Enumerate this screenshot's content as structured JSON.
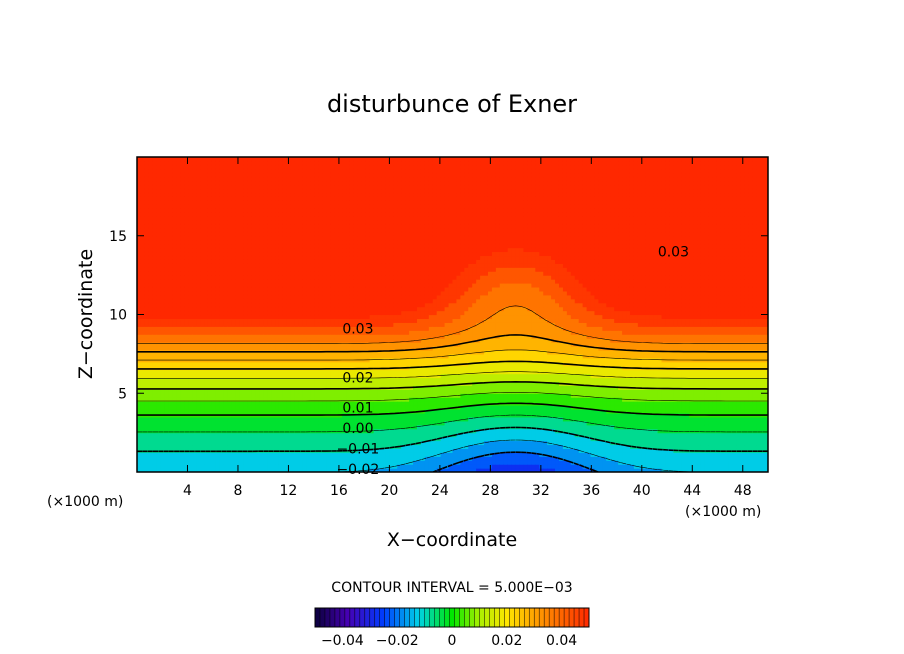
{
  "chart_data": {
    "type": "contour",
    "title": "disturbunce of Exner",
    "xlabel": "X−coordinate",
    "ylabel": "Z−coordinate",
    "x_unit_left": "(×1000 m)",
    "x_unit_right": "(×1000 m)",
    "xlim": [
      0,
      50
    ],
    "ylim": [
      0,
      20
    ],
    "x_ticks": [
      4,
      8,
      12,
      16,
      20,
      24,
      28,
      32,
      36,
      40,
      44,
      48
    ],
    "y_ticks": [
      5,
      10,
      15
    ],
    "contour_labels": [
      {
        "text": "0.03",
        "x": 17.5,
        "z": 9.1
      },
      {
        "text": "0.03",
        "x": 42.5,
        "z": 14.0
      },
      {
        "text": "0.02",
        "x": 17.5,
        "z": 6.0
      },
      {
        "text": "0.01",
        "x": 17.5,
        "z": 4.1
      },
      {
        "text": "0.00",
        "x": 17.5,
        "z": 2.8
      },
      {
        "text": "−0.01",
        "x": 17.5,
        "z": 1.5
      },
      {
        "text": "−0.02",
        "x": 17.5,
        "z": 0.2
      }
    ],
    "contour_interval_text": "CONTOUR INTERVAL = 5.000E−03",
    "colorbar": {
      "tick_labels": [
        "−0.04",
        "−0.02",
        "0",
        "0.02",
        "0.04"
      ],
      "tick_values": [
        -0.04,
        -0.02,
        0,
        0.02,
        0.04
      ],
      "range": [
        -0.05,
        0.05
      ]
    }
  }
}
